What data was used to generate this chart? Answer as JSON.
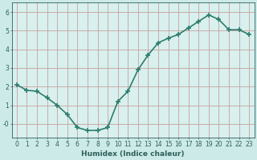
{
  "x": [
    0,
    1,
    2,
    3,
    4,
    5,
    6,
    7,
    8,
    9,
    10,
    11,
    12,
    13,
    14,
    15,
    16,
    17,
    18,
    19,
    20,
    21,
    22,
    23
  ],
  "y": [
    2.1,
    1.8,
    1.75,
    1.4,
    1.0,
    0.5,
    -0.2,
    -0.35,
    -0.35,
    -0.2,
    1.2,
    1.75,
    2.9,
    3.7,
    4.35,
    4.6,
    4.8,
    5.15,
    5.5,
    5.85,
    5.6,
    5.05,
    5.05,
    4.8
  ],
  "line_color": "#2e7d6e",
  "marker": "+",
  "marker_size": 4,
  "marker_lw": 1.2,
  "bg_color": "#cceae8",
  "plot_bg_color": "#d8f0ee",
  "grid_color": "#c8a0a0",
  "xlabel": "Humidex (Indice chaleur)",
  "xlim": [
    -0.5,
    23.5
  ],
  "ylim": [
    -0.75,
    6.5
  ],
  "yticks": [
    0,
    1,
    2,
    3,
    4,
    5,
    6
  ],
  "ytick_labels": [
    "-0",
    "1",
    "2",
    "3",
    "4",
    "5",
    "6"
  ],
  "xticks": [
    0,
    1,
    2,
    3,
    4,
    5,
    6,
    7,
    8,
    9,
    10,
    11,
    12,
    13,
    14,
    15,
    16,
    17,
    18,
    19,
    20,
    21,
    22,
    23
  ],
  "font_color": "#2e5f5a",
  "tick_font_size": 5.5,
  "label_font_size": 6.5,
  "linewidth": 1.2
}
